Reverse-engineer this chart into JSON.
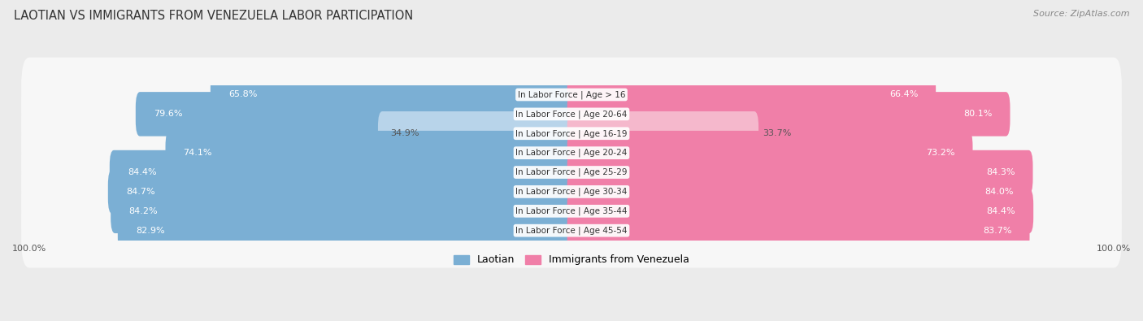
{
  "title": "LAOTIAN VS IMMIGRANTS FROM VENEZUELA LABOR PARTICIPATION",
  "source": "Source: ZipAtlas.com",
  "categories": [
    "In Labor Force | Age > 16",
    "In Labor Force | Age 20-64",
    "In Labor Force | Age 16-19",
    "In Labor Force | Age 20-24",
    "In Labor Force | Age 25-29",
    "In Labor Force | Age 30-34",
    "In Labor Force | Age 35-44",
    "In Labor Force | Age 45-54"
  ],
  "laotian_values": [
    65.8,
    79.6,
    34.9,
    74.1,
    84.4,
    84.7,
    84.2,
    82.9
  ],
  "venezuela_values": [
    66.4,
    80.1,
    33.7,
    73.2,
    84.3,
    84.0,
    84.4,
    83.7
  ],
  "laotian_color": "#7bafd4",
  "laotian_color_light": "#b8d4ea",
  "venezuela_color": "#f07fa8",
  "venezuela_color_light": "#f5b8cc",
  "background_color": "#ebebeb",
  "row_bg_color": "#f7f7f7",
  "bar_height": 0.68,
  "max_value": 100.0,
  "title_fontsize": 10.5,
  "source_fontsize": 8,
  "label_fontsize": 8,
  "category_fontsize": 7.5,
  "legend_fontsize": 9,
  "threshold_light": 50
}
